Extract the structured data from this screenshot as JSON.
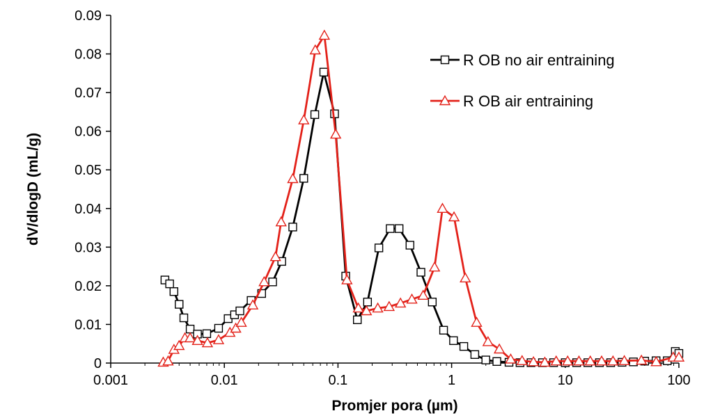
{
  "chart_data": {
    "type": "line",
    "title": "",
    "xlabel": "Promjer pora (µm)",
    "ylabel": "dV/dlogD (mL/g)",
    "xscale": "log",
    "xlim": [
      0.001,
      100
    ],
    "ylim": [
      0,
      0.09
    ],
    "xticks": [
      "0.001",
      "0.01",
      "0.1",
      "1",
      "10",
      "100"
    ],
    "yticks": [
      "0",
      "0.01",
      "0.02",
      "0.03",
      "0.04",
      "0.05",
      "0.06",
      "0.07",
      "0.08",
      "0.09"
    ],
    "grid": false,
    "legend_position": "top-right",
    "series": [
      {
        "name": "R OB no air entraining",
        "color": "#000000",
        "marker": "square",
        "x": [
          0.003,
          0.0033,
          0.0036,
          0.004,
          0.0044,
          0.005,
          0.0058,
          0.007,
          0.0089,
          0.0108,
          0.0123,
          0.0137,
          0.0172,
          0.0213,
          0.0266,
          0.032,
          0.04,
          0.05,
          0.0625,
          0.075,
          0.0933,
          0.117,
          0.148,
          0.182,
          0.229,
          0.288,
          0.345,
          0.43,
          0.537,
          0.676,
          0.85,
          1.04,
          1.28,
          1.6,
          2.0,
          2.5,
          3.2,
          4.0,
          5.0,
          6.3,
          7.9,
          10.0,
          12.6,
          15.8,
          20.0,
          25.1,
          31.6,
          39.8,
          50.0,
          63.0,
          79.0,
          93.0,
          100.0
        ],
        "values": [
          0.0215,
          0.0205,
          0.0185,
          0.0152,
          0.0117,
          0.0088,
          0.0075,
          0.0076,
          0.009,
          0.0115,
          0.0125,
          0.0135,
          0.0162,
          0.018,
          0.021,
          0.0263,
          0.0352,
          0.0478,
          0.0643,
          0.0753,
          0.0645,
          0.0225,
          0.0112,
          0.0158,
          0.0298,
          0.0348,
          0.0348,
          0.0305,
          0.0235,
          0.0158,
          0.0085,
          0.0058,
          0.0043,
          0.0022,
          0.0008,
          0.0004,
          0.0002,
          0.0001,
          0.0001,
          0.0001,
          0.0001,
          0.0001,
          0.0001,
          0.0001,
          0.0001,
          0.0001,
          0.0002,
          0.0003,
          0.0005,
          0.0006,
          0.0006,
          0.003,
          0.0025
        ]
      },
      {
        "name": "R OB air entraining",
        "color": "#e32119",
        "marker": "triangle",
        "x": [
          0.0029,
          0.0032,
          0.0036,
          0.004,
          0.0045,
          0.005,
          0.0058,
          0.0071,
          0.0089,
          0.0112,
          0.0126,
          0.0141,
          0.0178,
          0.0224,
          0.0282,
          0.0316,
          0.04,
          0.05,
          0.0631,
          0.0759,
          0.0955,
          0.12,
          0.151,
          0.178,
          0.224,
          0.282,
          0.355,
          0.447,
          0.562,
          0.708,
          0.831,
          1.05,
          1.32,
          1.66,
          2.09,
          2.63,
          3.31,
          4.17,
          5.25,
          6.61,
          8.32,
          10.5,
          13.2,
          16.6,
          20.9,
          26.3,
          33.1,
          46.8,
          63.1,
          89.1,
          100.0
        ],
        "values": [
          0.0002,
          0.0005,
          0.0035,
          0.0045,
          0.0065,
          0.0065,
          0.0058,
          0.0052,
          0.006,
          0.0079,
          0.009,
          0.0105,
          0.015,
          0.021,
          0.0275,
          0.0365,
          0.0477,
          0.0629,
          0.081,
          0.0848,
          0.0592,
          0.0215,
          0.0142,
          0.0135,
          0.0142,
          0.0146,
          0.0155,
          0.0165,
          0.0175,
          0.0248,
          0.04,
          0.0378,
          0.022,
          0.0105,
          0.0055,
          0.0036,
          0.001,
          0.0006,
          0.0003,
          0.0002,
          0.0005,
          0.0005,
          0.0005,
          0.0005,
          0.0005,
          0.0005,
          0.0006,
          0.0007,
          0.0003,
          0.0015,
          0.0015
        ]
      }
    ]
  }
}
